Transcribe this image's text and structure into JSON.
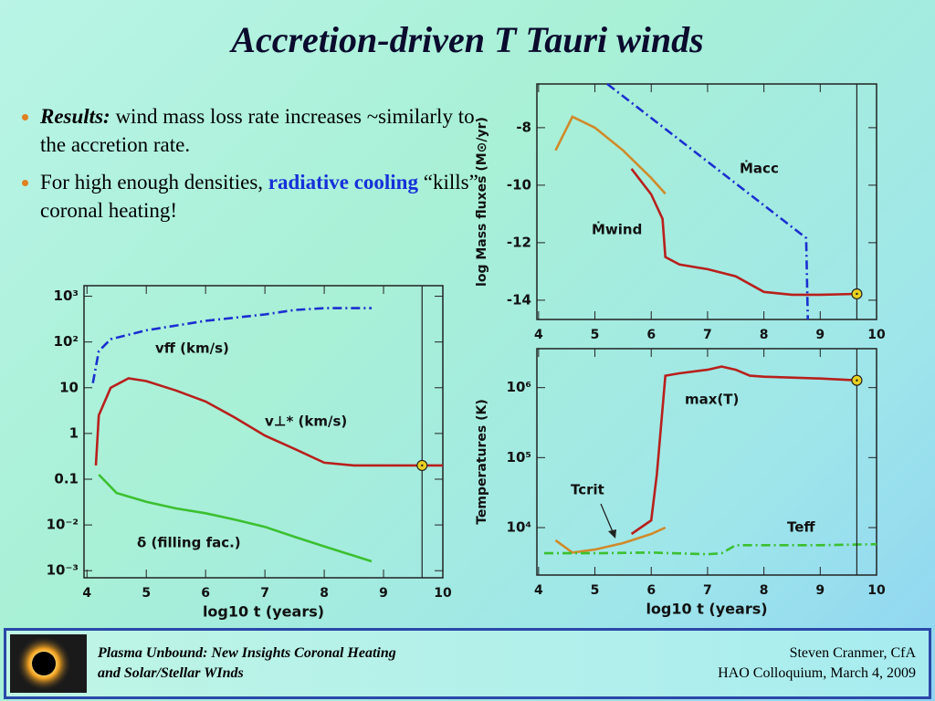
{
  "title": "Accretion-driven T Tauri winds",
  "bullets": [
    {
      "lead": "Results:",
      "text": " wind mass loss rate increases ~similarly to the accretion rate."
    },
    {
      "text": "For high enough densities, ",
      "highlight": "radiative cooling",
      "tail": " “kills” coronal heating!"
    }
  ],
  "footer": {
    "left": [
      "Plasma Unbound:  New Insights Coronal Heating",
      "and Solar/Stellar WInds"
    ],
    "right": [
      "Steven Cranmer,  CfA",
      "HAO Colloquium, March 4, 2009"
    ]
  },
  "chart_data": [
    {
      "type": "line",
      "xlabel": "log10 t   (years)",
      "xlim": [
        3.95,
        10
      ],
      "xticks": [
        4,
        5,
        6,
        7,
        8,
        9,
        10
      ],
      "ylog": true,
      "ylim": [
        0.0007,
        1700
      ],
      "yticks": [
        {
          "value": 1000,
          "label": "10³"
        },
        {
          "value": 100,
          "label": "10²"
        },
        10,
        1,
        0.1,
        {
          "value": 0.01,
          "label": "10⁻²"
        },
        {
          "value": 0.001,
          "label": "10⁻³"
        }
      ],
      "age_marker": {
        "x": 9.65,
        "y": 0.2
      },
      "series": [
        {
          "name": "vff  (km/s)",
          "color": "#1a2fd0",
          "style": "dashdot",
          "x": [
            4.1,
            4.2,
            4.4,
            5,
            6,
            7,
            7.5,
            8,
            8.8
          ],
          "values": [
            12.6,
            63,
            115,
            180,
            290,
            400,
            500,
            550,
            550
          ]
        },
        {
          "name": "v⊥*  (km/s)",
          "color": "#b8201c",
          "style": "solid",
          "x": [
            4.15,
            4.2,
            4.4,
            4.7,
            5,
            5.5,
            6,
            6.5,
            7,
            7.5,
            7.6,
            8,
            8.5,
            10
          ],
          "values": [
            0.2,
            2.5,
            10,
            16,
            14,
            8.7,
            5,
            2.2,
            0.9,
            0.46,
            0.4,
            0.23,
            0.2,
            0.2
          ]
        },
        {
          "name": "δ (filling fac.)",
          "color": "#3cc030",
          "style": "solid",
          "x": [
            4.2,
            4.5,
            5,
            5.5,
            6,
            6.5,
            7,
            7.5,
            8,
            8.8
          ],
          "values": [
            0.126,
            0.05,
            0.032,
            0.023,
            0.018,
            0.013,
            0.0091,
            0.0055,
            0.0034,
            0.0016
          ]
        }
      ]
    },
    {
      "type": "line",
      "ylabel": "log Mass fluxes (M⊙/yr)",
      "xlim": [
        3.97,
        10
      ],
      "xticks": [
        4,
        5,
        6,
        7,
        8,
        9,
        10
      ],
      "ylim": [
        -14.67,
        -6.48
      ],
      "yticks": [
        -8,
        -10,
        -12,
        -14
      ],
      "age_marker": {
        "x": 9.65,
        "y": -13.78
      },
      "series": [
        {
          "name": "Ṁacc",
          "color": "#1a2fd0",
          "style": "dashdot",
          "x": [
            5.22,
            8.75,
            8.78
          ],
          "values": [
            -6.48,
            -11.84,
            -14.67
          ]
        },
        {
          "color": "#d08a2a",
          "style": "solid",
          "x": [
            4.3,
            4.6,
            5,
            5.5,
            6,
            6.25
          ],
          "values": [
            -8.79,
            -7.62,
            -8,
            -8.79,
            -9.75,
            -10.3
          ]
        },
        {
          "name": "Ṁwind",
          "color": "#b8201c",
          "style": "solid",
          "x": [
            5.65,
            6,
            6.2,
            6.25,
            6.5,
            7,
            7.5,
            8,
            8.5,
            9,
            9.65
          ],
          "values": [
            -9.43,
            -10.32,
            -11.17,
            -12.5,
            -12.76,
            -12.92,
            -13.17,
            -13.71,
            -13.81,
            -13.81,
            -13.78
          ]
        }
      ]
    },
    {
      "type": "line",
      "xlabel": "log10 t   (years)",
      "ylabel": "Temperatures (K)",
      "xlim": [
        3.97,
        10
      ],
      "xticks": [
        4,
        5,
        6,
        7,
        8,
        9,
        10
      ],
      "ylog": true,
      "ylim": [
        2100,
        3600000
      ],
      "yticks": [
        {
          "value": 1000000,
          "label": "10⁶"
        },
        {
          "value": 100000,
          "label": "10⁵"
        },
        {
          "value": 10000,
          "label": "10⁴"
        }
      ],
      "age_marker": {
        "x": 9.65,
        "y": 1270000
      },
      "series": [
        {
          "name": "max(T)",
          "color": "#b8201c",
          "style": "solid",
          "x": [
            5.65,
            6,
            6.1,
            6.25,
            6.5,
            7,
            7.25,
            7.5,
            7.75,
            8,
            9,
            9.65
          ],
          "values": [
            8100,
            12700,
            58000,
            1480000,
            1600000,
            1800000,
            2000000,
            1800000,
            1480000,
            1430000,
            1350000,
            1270000
          ]
        },
        {
          "name": "Tcrit",
          "color": "#d08a2a",
          "style": "solid",
          "x": [
            4.3,
            4.6,
            5,
            5.5,
            6,
            6.25
          ],
          "values": [
            6600,
            4400,
            4850,
            6000,
            8100,
            10000
          ]
        },
        {
          "name": "Teff",
          "color": "#3cc030",
          "style": "dashdot",
          "x": [
            4.1,
            5,
            6,
            7,
            7.25,
            7.5,
            9,
            10
          ],
          "values": [
            4300,
            4300,
            4400,
            4170,
            4300,
            5600,
            5600,
            5800
          ]
        }
      ]
    }
  ]
}
